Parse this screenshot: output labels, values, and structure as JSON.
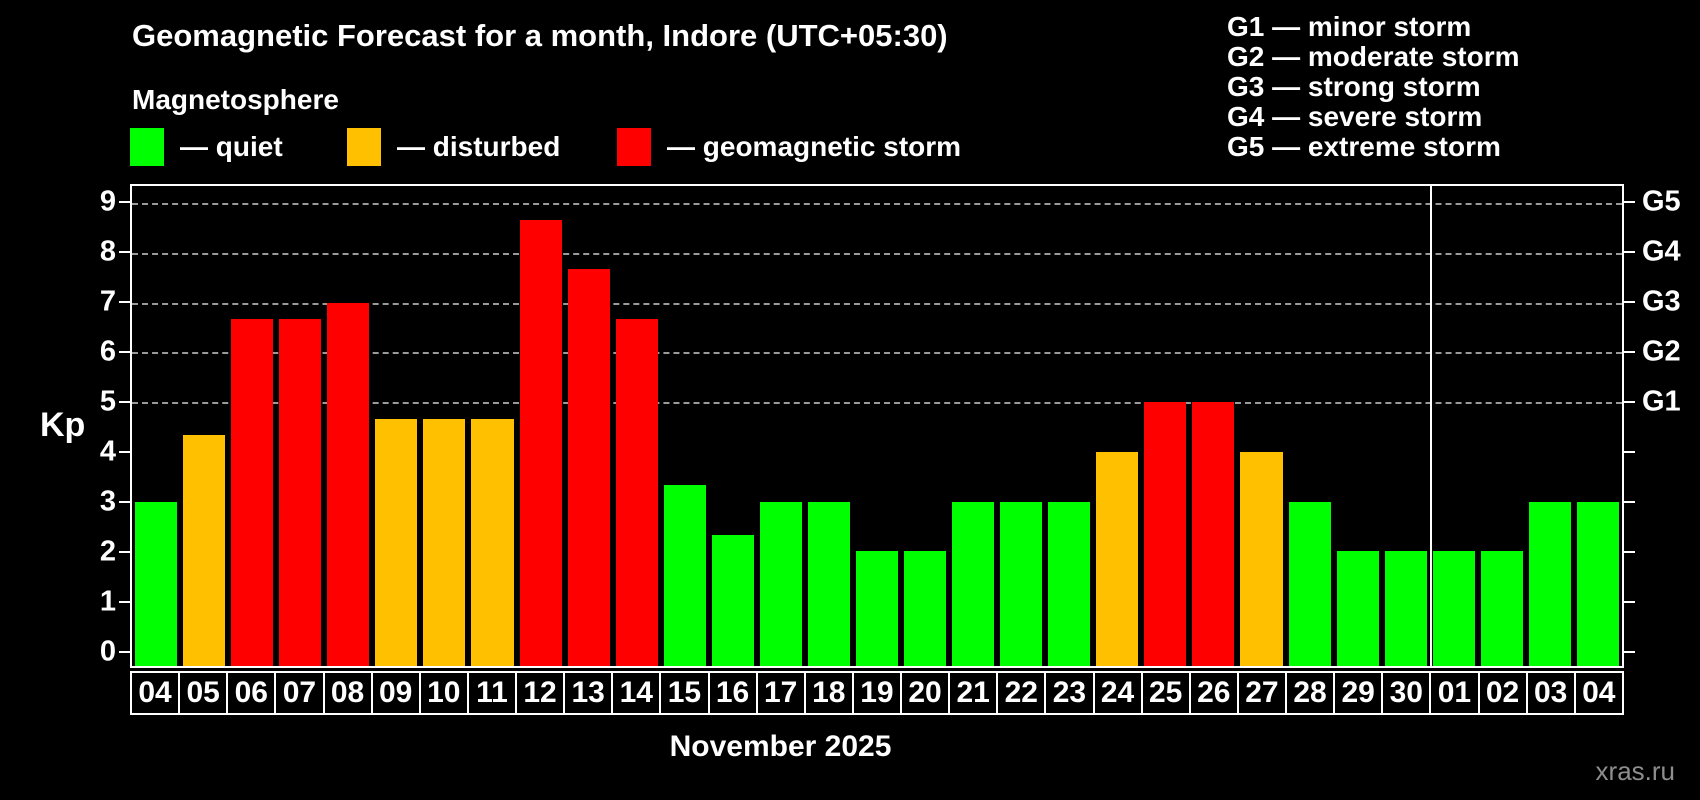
{
  "header": {
    "title": "Geomagnetic Forecast for a month, Indore (UTC+05:30)",
    "subtitle": "Magnetosphere",
    "legend": [
      {
        "label": "— quiet",
        "status": "quiet",
        "color": "#00ff00"
      },
      {
        "label": "— disturbed",
        "status": "disturbed",
        "color": "#ffc000"
      },
      {
        "label": "— geomagnetic storm",
        "status": "storm",
        "color": "#ff0000"
      }
    ],
    "g_legend": [
      "G1 — minor storm",
      "G2 — moderate storm",
      "G3 — strong storm",
      "G4 — severe storm",
      "G5 — extreme storm"
    ]
  },
  "chart_data": {
    "type": "bar",
    "title": "Geomagnetic Forecast for a month, Indore (UTC+05:30)",
    "ylabel": "Kp",
    "xlabel": "November 2025",
    "categories": [
      "04",
      "05",
      "06",
      "07",
      "08",
      "09",
      "10",
      "11",
      "12",
      "13",
      "14",
      "15",
      "16",
      "17",
      "18",
      "19",
      "20",
      "21",
      "22",
      "23",
      "24",
      "25",
      "26",
      "27",
      "28",
      "29",
      "30",
      "01",
      "02",
      "03",
      "04"
    ],
    "values": [
      3,
      4.33,
      6.67,
      6.67,
      7,
      4.67,
      4.67,
      4.67,
      8.67,
      7.67,
      6.67,
      3.33,
      2.33,
      3,
      3,
      2,
      2,
      3,
      3,
      3,
      4,
      5,
      5,
      4,
      3,
      2,
      2,
      2,
      2,
      3,
      3
    ],
    "statuses": [
      "quiet",
      "disturbed",
      "storm",
      "storm",
      "storm",
      "disturbed",
      "disturbed",
      "disturbed",
      "storm",
      "storm",
      "storm",
      "quiet",
      "quiet",
      "quiet",
      "quiet",
      "quiet",
      "quiet",
      "quiet",
      "quiet",
      "quiet",
      "disturbed",
      "storm",
      "storm",
      "disturbed",
      "quiet",
      "quiet",
      "quiet",
      "quiet",
      "quiet",
      "quiet",
      "quiet"
    ],
    "status_colors": {
      "quiet": "#00ff00",
      "disturbed": "#ffc000",
      "storm": "#ff0000"
    },
    "ylim": [
      0,
      9
    ],
    "yticks": [
      0,
      1,
      2,
      3,
      4,
      5,
      6,
      7,
      8,
      9
    ],
    "grid_kp": [
      5,
      6,
      7,
      8,
      9
    ],
    "right_axis_labels": [
      {
        "kp": 5,
        "label": "G1"
      },
      {
        "kp": 6,
        "label": "G2"
      },
      {
        "kp": 7,
        "label": "G3"
      },
      {
        "kp": 8,
        "label": "G4"
      },
      {
        "kp": 9,
        "label": "G5"
      }
    ],
    "month_divider_after_index": 26,
    "legend_position": "top",
    "grid_color": "#9a9a9a"
  },
  "footer": {
    "month_label": "November 2025",
    "watermark": "xras.ru"
  }
}
